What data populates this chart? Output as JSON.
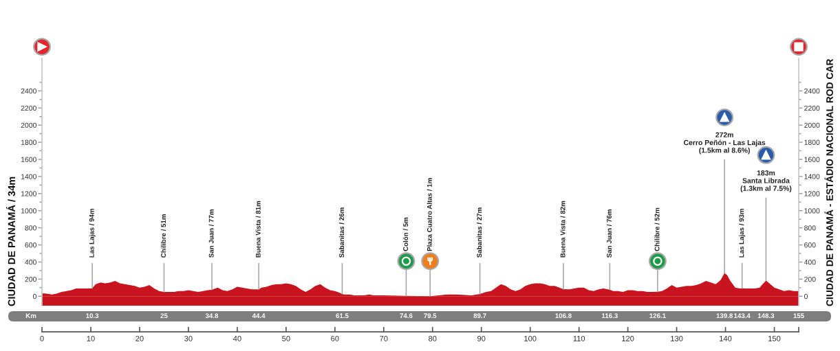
{
  "chart_data": {
    "type": "area",
    "ylabel": "CIUDAD DE PANAMÁ / 34m",
    "y2label": "CIUDAD DE PANAMÁ - ESTÁDIO NACIONAL ROD CAR",
    "x2label": "Km",
    "x": [
      0,
      1,
      2,
      3,
      4,
      5,
      6,
      7,
      8,
      9,
      10,
      10.3,
      11,
      12,
      13,
      14,
      15,
      16,
      17,
      18,
      19,
      20,
      21,
      22,
      23,
      24,
      25,
      26,
      27,
      28,
      29,
      30,
      31,
      32,
      33,
      34,
      34.8,
      36,
      37,
      38,
      39,
      40,
      41,
      42,
      43,
      44,
      44.4,
      45,
      46,
      47,
      48,
      49,
      50,
      51,
      52,
      53,
      54,
      55,
      56,
      57,
      58,
      59,
      60,
      61,
      61.5,
      62,
      63,
      64,
      66,
      67,
      68,
      70,
      74.6,
      79.5,
      83,
      85,
      88,
      89.7,
      91,
      92,
      93,
      94,
      95,
      96,
      97,
      98,
      99,
      100,
      101,
      102,
      103,
      104,
      105,
      106,
      106.8,
      108,
      109,
      110,
      111,
      112,
      113,
      114,
      115,
      116.3,
      117,
      118,
      119,
      120,
      121,
      122,
      123,
      124,
      125,
      126.1,
      127,
      128,
      129,
      130,
      131,
      132,
      133,
      134,
      135,
      136,
      137,
      138,
      139,
      139.8,
      140.3,
      141,
      142,
      143,
      143.4,
      144,
      145,
      146,
      147,
      147.6,
      148.3,
      149,
      150,
      151,
      152,
      153,
      154,
      155
    ],
    "series": [
      {
        "color": "#c8141e",
        "values": [
          34,
          30,
          20,
          30,
          50,
          60,
          70,
          90,
          90,
          90,
          90,
          94,
          140,
          160,
          150,
          160,
          180,
          150,
          140,
          130,
          120,
          100,
          110,
          130,
          90,
          60,
          51,
          50,
          50,
          60,
          60,
          70,
          60,
          50,
          60,
          70,
          77,
          100,
          70,
          60,
          80,
          110,
          100,
          90,
          80,
          80,
          81,
          100,
          110,
          130,
          140,
          140,
          150,
          140,
          120,
          80,
          50,
          80,
          120,
          140,
          100,
          70,
          60,
          40,
          26,
          20,
          20,
          10,
          10,
          20,
          10,
          10,
          5,
          1,
          20,
          20,
          10,
          27,
          50,
          60,
          100,
          140,
          120,
          80,
          60,
          80,
          120,
          140,
          150,
          150,
          140,
          120,
          120,
          100,
          82,
          80,
          90,
          100,
          100,
          70,
          60,
          80,
          90,
          76,
          60,
          60,
          50,
          70,
          70,
          60,
          60,
          50,
          50,
          52,
          60,
          90,
          130,
          100,
          110,
          120,
          120,
          130,
          150,
          180,
          160,
          140,
          190,
          272,
          250,
          180,
          100,
          90,
          93,
          90,
          90,
          90,
          100,
          140,
          183,
          150,
          100,
          80,
          60,
          70,
          60,
          60
        ]
      }
    ],
    "bands": [
      {
        "axis": "y",
        "from": -110,
        "to": 0,
        "color": "#c8141e"
      }
    ],
    "xlim": [
      0,
      155
    ],
    "xticks": [
      0,
      10,
      20,
      30,
      40,
      50,
      60,
      70,
      80,
      90,
      100,
      110,
      120,
      130,
      140,
      150,
      {
        "value": 155,
        "label": null
      }
    ],
    "x2lim": [
      0,
      155
    ],
    "x2ticks": [
      10.3,
      25,
      34.8,
      44.4,
      61.5,
      74.6,
      79.5,
      89.7,
      106.8,
      116.3,
      126.1,
      139.8,
      143.4,
      148.3,
      155
    ],
    "ylim": [
      -110,
      2780
    ],
    "yticks": [
      0,
      {
        "value": 100,
        "label": null
      },
      200,
      {
        "value": 300,
        "label": null
      },
      400,
      {
        "value": 500,
        "label": null
      },
      600,
      {
        "value": 700,
        "label": null
      },
      800,
      {
        "value": 900,
        "label": null
      },
      1000,
      {
        "value": 1100,
        "label": null
      },
      1200,
      {
        "value": 1300,
        "label": null
      },
      1400,
      {
        "value": 1500,
        "label": null
      },
      1600,
      {
        "value": 1700,
        "label": null
      },
      1800,
      {
        "value": 1900,
        "label": null
      },
      2000,
      {
        "value": 2100,
        "label": null
      },
      2200,
      {
        "value": 2300,
        "label": null
      },
      2400,
      {
        "value": 2500,
        "label": null
      }
    ],
    "y2lim": [
      -110,
      2780
    ],
    "y2ticks": [
      0,
      {
        "value": 100,
        "label": null
      },
      200,
      {
        "value": 300,
        "label": null
      },
      400,
      {
        "value": 500,
        "label": null
      },
      600,
      {
        "value": 700,
        "label": null
      },
      800,
      {
        "value": 900,
        "label": null
      },
      1000,
      {
        "value": 1100,
        "label": null
      },
      1200,
      {
        "value": 1300,
        "label": null
      },
      1400,
      {
        "value": 1500,
        "label": null
      },
      1600,
      {
        "value": 1700,
        "label": null
      },
      1800,
      {
        "value": 1900,
        "label": null
      },
      2000,
      {
        "value": 2100,
        "label": null
      },
      2200,
      {
        "value": 2300,
        "label": null
      },
      2400,
      {
        "value": 2500,
        "label": null
      }
    ],
    "annotations": [
      {
        "text": "Las Lajas / 94m",
        "x": 10.3,
        "y": 94
      },
      {
        "text": "Chilibre / 51m",
        "x": 25,
        "y": 51
      },
      {
        "text": "San Juan / 77m",
        "x": 34.8,
        "y": 77
      },
      {
        "text": "Buena Vista / 81m",
        "x": 44.4,
        "y": 81
      },
      {
        "text": "Sabanitas / 26m",
        "x": 61.5,
        "y": 26
      },
      {
        "text": "Colón / 5m",
        "x": 74.6,
        "y": 5
      },
      {
        "text": "Plaza Cuatro Altas / 1m",
        "x": 79.5,
        "y": 1
      },
      {
        "text": "Sabanitas / 27m",
        "x": 89.7,
        "y": 27
      },
      {
        "text": "Buena Vista / 82m",
        "x": 106.8,
        "y": 82
      },
      {
        "text": "San Juan / 76m",
        "x": 116.3,
        "y": 76
      },
      {
        "text": "Chilibre / 52m",
        "x": 126.1,
        "y": 52
      },
      {
        "text": "272m\nCerro Peñón - Las Lajas\n(1.5km al 8.6%)",
        "x": 139.8,
        "y": 272
      },
      {
        "text": "Las Lajas / 93m",
        "x": 143.4,
        "y": 93
      },
      {
        "text": "183m\nSanta Librada\n(1.3km al 7.5%)",
        "x": 148.3,
        "y": 183
      }
    ]
  }
}
